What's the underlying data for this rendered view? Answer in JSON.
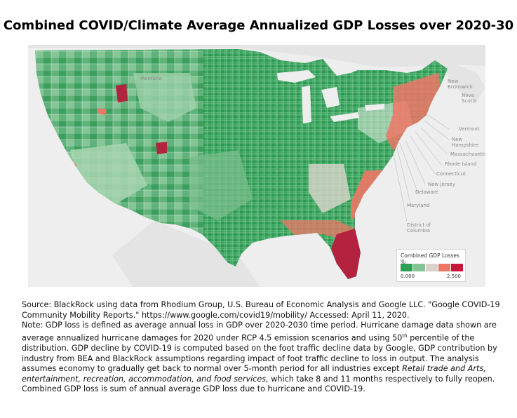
{
  "title": "Combined COVID/Climate Average Annualized GDP Losses over 2020-30",
  "map": {
    "labels": {
      "montana": "Montana",
      "new_brunswick": "New Brunswick",
      "nova_scotia": "Nova Scotia",
      "vermont": "Vermont",
      "new_hampshire": "New Hampshire",
      "massachusetts": "Massachusetts",
      "rhode_island": "Rhode Island",
      "connecticut": "Connecticut",
      "new_jersey": "New Jersey",
      "delaware": "Delaware",
      "maryland": "Maryland",
      "dc": "District of Columbia"
    },
    "colors": {
      "ocean": "#eeeeee",
      "land_outside": "#e2e2e2",
      "green_dark": "#2e9e55",
      "green_mid": "#6fba84",
      "green_light": "#a9d5b1",
      "neutral": "#e8e1d7",
      "red_light": "#ee8a7a",
      "red_dark": "#b3223f"
    }
  },
  "legend": {
    "title": "Combined GDP Losses %",
    "min": "0.000",
    "max": "2.500",
    "colors": [
      "#2e9e55",
      "#85c395",
      "#d9d3cb",
      "#ef7566",
      "#c0193d"
    ]
  },
  "note": {
    "line1": "Source: BlackRock using data from Rhodium Group, U.S. Bureau of Economic Analysis and Google LLC. \"Google COVID-19 Community Mobility Reports.\" https://www.google.com/covid19/mobility/ Accessed: April 11, 2020.",
    "line2a": "Note: GDP loss is defined as average annual loss in GDP over 2020-2030 time period. Hurricane damage data shown are average annualized hurricane damages for 2020 under RCP 4.5 emission scenarios and using 50",
    "sup": "th",
    "line2b": " percentile of the distribution. GDP decline by COVID-19 is computed based on the foot traffic decline data by Google, GDP contribution by industry from BEA and BlackRock assumptions regarding impact of foot traffic decline to loss in output. The analysis assumes economy to gradually get back to normal over 5-month period for all industries except ",
    "italic": "Retail trade and Arts, entertainment, recreation, accommodation, and food services,",
    "line2c": " which take 8 and 11 months respectively to fully reopen. Combined GDP loss is sum of annual average GDP loss due to hurricane and COVID-19."
  }
}
